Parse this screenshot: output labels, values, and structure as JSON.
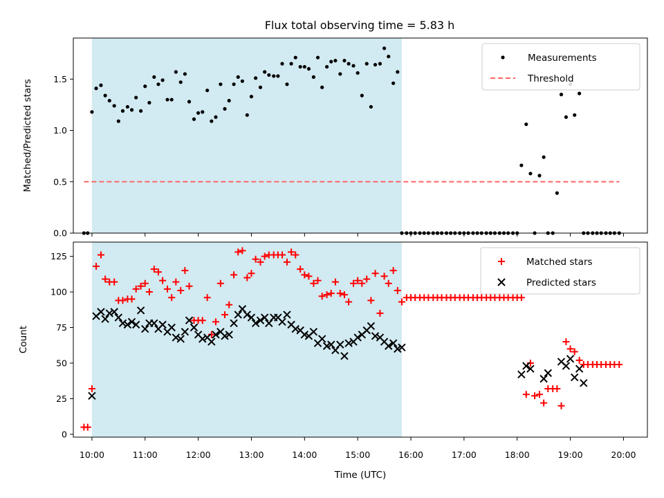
{
  "figure_title": "Flux total observing time = 5.83 h",
  "colors": {
    "highlight": "#add8e6",
    "threshold": "#ff6666",
    "matched": "#ff0000",
    "predicted": "#000000",
    "measurements": "#000000"
  },
  "chart_data": [
    {
      "type": "scatter",
      "title": "Flux total observing time = 5.83 h",
      "ylabel": "Matched/Predicted stars",
      "xlabel": "",
      "xlim": [
        9.65,
        20.45
      ],
      "ylim": [
        0,
        1.9
      ],
      "yticks": [
        0,
        0.5,
        1.0,
        1.5
      ],
      "ytick_labels": [
        "0.0",
        "0.5",
        "1.0",
        "1.5"
      ],
      "highlight_span": [
        10.0,
        15.83
      ],
      "threshold": {
        "name": "Threshold",
        "value": 0.5,
        "x_range": [
          9.85,
          19.92
        ],
        "style": "dashed"
      },
      "legend": {
        "position": "top-right",
        "entries": [
          "Measurements",
          "Threshold"
        ]
      },
      "series": [
        {
          "name": "Measurements",
          "marker": "dot",
          "x": [
            9.85,
            9.92,
            10.0,
            10.08,
            10.17,
            10.25,
            10.33,
            10.42,
            10.5,
            10.58,
            10.67,
            10.75,
            10.83,
            10.92,
            11.0,
            11.08,
            11.17,
            11.25,
            11.33,
            11.42,
            11.5,
            11.58,
            11.67,
            11.75,
            11.83,
            11.92,
            12.0,
            12.08,
            12.17,
            12.25,
            12.33,
            12.42,
            12.5,
            12.58,
            12.67,
            12.75,
            12.83,
            12.92,
            13.0,
            13.08,
            13.17,
            13.25,
            13.33,
            13.42,
            13.5,
            13.58,
            13.67,
            13.75,
            13.83,
            13.92,
            14.0,
            14.08,
            14.17,
            14.25,
            14.33,
            14.42,
            14.5,
            14.58,
            14.67,
            14.75,
            14.83,
            14.92,
            15.0,
            15.08,
            15.17,
            15.25,
            15.33,
            15.42,
            15.5,
            15.58,
            15.67,
            15.75,
            15.83,
            15.92,
            16.0,
            16.08,
            16.17,
            16.25,
            16.33,
            16.42,
            16.5,
            16.58,
            16.67,
            16.75,
            16.83,
            16.92,
            17.0,
            17.08,
            17.17,
            17.25,
            17.33,
            17.42,
            17.5,
            17.58,
            17.67,
            17.75,
            17.83,
            17.92,
            18.0,
            18.08,
            18.17,
            18.25,
            18.33,
            18.42,
            18.5,
            18.58,
            18.67,
            18.75,
            18.83,
            18.92,
            19.0,
            19.08,
            19.17,
            19.25,
            19.33,
            19.42,
            19.5,
            19.58,
            19.67,
            19.75,
            19.83,
            19.92
          ],
          "y": [
            0,
            0,
            1.18,
            1.41,
            1.44,
            1.34,
            1.29,
            1.24,
            1.09,
            1.19,
            1.23,
            1.2,
            1.32,
            1.19,
            1.43,
            1.27,
            1.52,
            1.45,
            1.49,
            1.3,
            1.3,
            1.57,
            1.47,
            1.55,
            1.28,
            1.11,
            1.17,
            1.18,
            1.39,
            1.09,
            1.13,
            1.45,
            1.21,
            1.29,
            1.45,
            1.52,
            1.48,
            1.15,
            1.33,
            1.51,
            1.42,
            1.57,
            1.54,
            1.53,
            1.53,
            1.65,
            1.45,
            1.65,
            1.71,
            1.62,
            1.62,
            1.6,
            1.52,
            1.71,
            1.42,
            1.62,
            1.67,
            1.68,
            1.55,
            1.68,
            1.65,
            1.63,
            1.56,
            1.34,
            1.65,
            1.23,
            1.64,
            1.65,
            1.8,
            1.72,
            1.46,
            1.57,
            0,
            0,
            0,
            0,
            0,
            0,
            0,
            0,
            0,
            0,
            0,
            0,
            0,
            0,
            0,
            0,
            0,
            0,
            0,
            0,
            0,
            0,
            0,
            0,
            0,
            0,
            0,
            0.66,
            1.06,
            0.58,
            0,
            0.56,
            0.74,
            0,
            0,
            0.39,
            1.35,
            1.13,
            1.45,
            1.15,
            1.36,
            0,
            0,
            0,
            0,
            0,
            0,
            0,
            0,
            0
          ]
        }
      ]
    },
    {
      "type": "scatter",
      "title": "",
      "ylabel": "Count",
      "xlabel": "Time (UTC)",
      "xlim": [
        9.65,
        20.45
      ],
      "ylim": [
        -2,
        135
      ],
      "yticks": [
        0,
        25,
        50,
        75,
        100,
        125
      ],
      "ytick_labels": [
        "0",
        "25",
        "50",
        "75",
        "100",
        "125"
      ],
      "xticks": [
        10,
        11,
        12,
        13,
        14,
        15,
        16,
        17,
        18,
        19,
        20
      ],
      "xtick_labels": [
        "10:00",
        "11:00",
        "12:00",
        "13:00",
        "14:00",
        "15:00",
        "16:00",
        "17:00",
        "18:00",
        "19:00",
        "20:00"
      ],
      "highlight_span": [
        10.0,
        15.83
      ],
      "legend": {
        "position": "top-right",
        "entries": [
          "Matched stars",
          "Predicted stars"
        ]
      },
      "series": [
        {
          "name": "Matched stars",
          "marker": "plus",
          "x": [
            9.85,
            9.92,
            10.0,
            10.08,
            10.17,
            10.25,
            10.33,
            10.42,
            10.5,
            10.58,
            10.67,
            10.75,
            10.83,
            10.92,
            11.0,
            11.08,
            11.17,
            11.25,
            11.33,
            11.42,
            11.5,
            11.58,
            11.67,
            11.75,
            11.83,
            11.92,
            12.0,
            12.08,
            12.17,
            12.25,
            12.33,
            12.42,
            12.5,
            12.58,
            12.67,
            12.75,
            12.83,
            12.92,
            13.0,
            13.08,
            13.17,
            13.25,
            13.33,
            13.42,
            13.5,
            13.58,
            13.67,
            13.75,
            13.83,
            13.92,
            14.0,
            14.08,
            14.17,
            14.25,
            14.33,
            14.42,
            14.5,
            14.58,
            14.67,
            14.75,
            14.83,
            14.92,
            15.0,
            15.08,
            15.17,
            15.25,
            15.33,
            15.42,
            15.5,
            15.58,
            15.67,
            15.75,
            15.83,
            15.92,
            16.0,
            16.08,
            16.17,
            16.25,
            16.33,
            16.42,
            16.5,
            16.58,
            16.67,
            16.75,
            16.83,
            16.92,
            17.0,
            17.08,
            17.17,
            17.25,
            17.33,
            17.42,
            17.5,
            17.58,
            17.67,
            17.75,
            17.83,
            17.92,
            18.0,
            18.08,
            18.17,
            18.25,
            18.33,
            18.42,
            18.5,
            18.58,
            18.67,
            18.75,
            18.83,
            18.92,
            19.0,
            19.08,
            19.17,
            19.25,
            19.33,
            19.42,
            19.5,
            19.58,
            19.67,
            19.75,
            19.83,
            19.92
          ],
          "y": [
            5,
            5,
            32,
            118,
            126,
            109,
            107,
            107,
            94,
            94,
            95,
            95,
            102,
            104,
            106,
            100,
            116,
            114,
            108,
            102,
            96,
            107,
            101,
            115,
            104,
            80,
            80,
            80,
            96,
            70,
            79,
            106,
            84,
            91,
            112,
            128,
            129,
            110,
            113,
            123,
            121,
            125,
            126,
            126,
            126,
            126,
            121,
            128,
            126,
            116,
            112,
            111,
            106,
            108,
            97,
            98,
            99,
            107,
            99,
            98,
            93,
            106,
            108,
            106,
            109,
            94,
            113,
            85,
            111,
            106,
            115,
            101,
            93,
            96,
            96,
            96,
            96,
            96,
            96,
            96,
            96,
            96,
            96,
            96,
            96,
            96,
            96,
            96,
            96,
            96,
            96,
            96,
            96,
            96,
            96,
            96,
            96,
            96,
            96,
            96,
            28,
            50,
            27,
            28,
            22,
            32,
            32,
            32,
            20,
            65,
            60,
            58,
            52,
            49,
            49,
            49,
            49,
            49,
            49,
            49,
            49,
            49
          ]
        },
        {
          "name": "Predicted stars",
          "marker": "x",
          "x": [
            10.0,
            10.08,
            10.17,
            10.25,
            10.33,
            10.42,
            10.5,
            10.58,
            10.67,
            10.75,
            10.83,
            10.92,
            11.0,
            11.08,
            11.17,
            11.25,
            11.33,
            11.42,
            11.5,
            11.58,
            11.67,
            11.75,
            11.83,
            11.92,
            12.0,
            12.08,
            12.17,
            12.25,
            12.33,
            12.42,
            12.5,
            12.58,
            12.67,
            12.75,
            12.83,
            12.92,
            13.0,
            13.08,
            13.17,
            13.25,
            13.33,
            13.42,
            13.5,
            13.58,
            13.67,
            13.75,
            13.83,
            13.92,
            14.0,
            14.08,
            14.17,
            14.25,
            14.33,
            14.42,
            14.5,
            14.58,
            14.67,
            14.75,
            14.83,
            14.92,
            15.0,
            15.08,
            15.17,
            15.25,
            15.33,
            15.42,
            15.5,
            15.58,
            15.67,
            15.75,
            15.83,
            18.08,
            18.17,
            18.25,
            18.5,
            18.58,
            18.83,
            18.92,
            19.0,
            19.08,
            19.17,
            19.25
          ],
          "y": [
            27,
            83,
            86,
            81,
            85,
            86,
            82,
            78,
            77,
            79,
            77,
            87,
            74,
            78,
            78,
            74,
            77,
            72,
            75,
            68,
            67,
            72,
            80,
            75,
            70,
            67,
            68,
            65,
            70,
            72,
            69,
            70,
            78,
            84,
            88,
            84,
            82,
            78,
            80,
            82,
            78,
            82,
            82,
            79,
            84,
            77,
            74,
            73,
            70,
            69,
            72,
            64,
            67,
            62,
            63,
            59,
            63,
            55,
            64,
            65,
            68,
            70,
            73,
            76,
            69,
            68,
            65,
            62,
            64,
            60,
            61,
            42,
            48,
            46,
            39,
            43,
            51,
            48,
            53,
            40,
            46,
            36
          ]
        }
      ]
    }
  ]
}
